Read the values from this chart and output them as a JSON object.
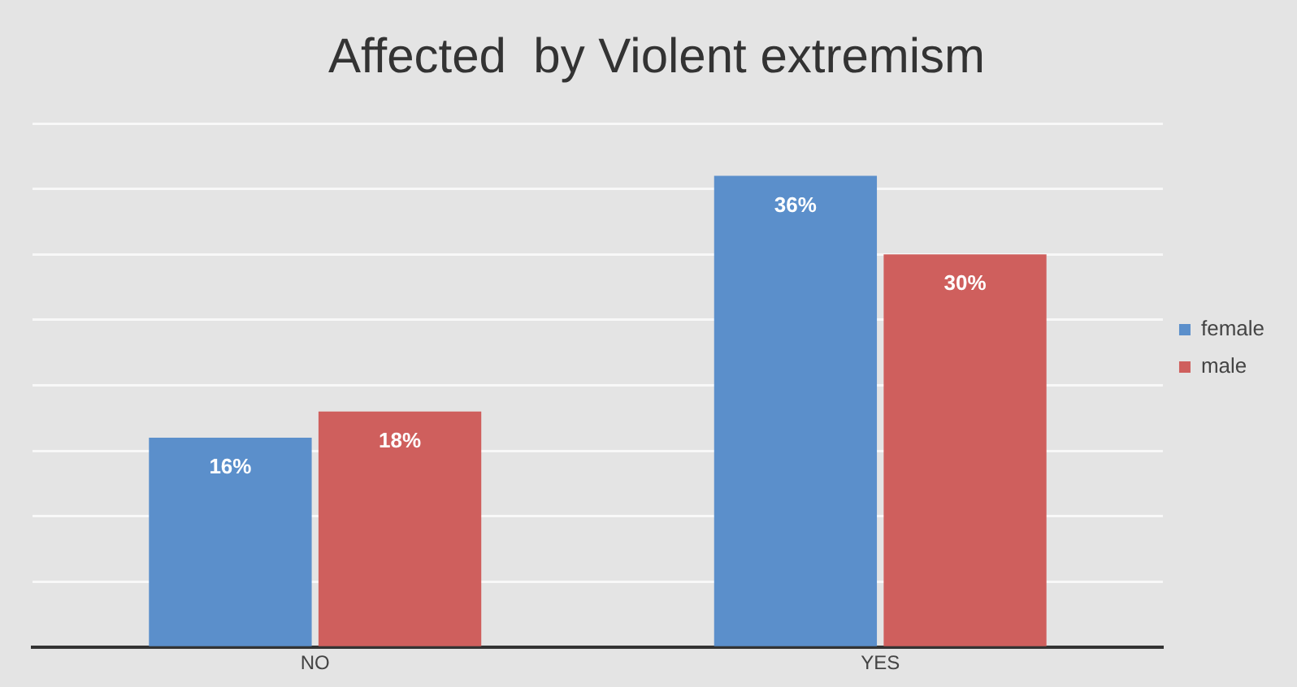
{
  "chart_data": {
    "type": "bar",
    "title": "Affected  by Violent extremism",
    "categories": [
      "NO",
      "YES"
    ],
    "series": [
      {
        "name": "female",
        "color": "#5b8fcb",
        "values": [
          16,
          36
        ],
        "value_labels": [
          "16%",
          "36%"
        ]
      },
      {
        "name": "male",
        "color": "#cf5f5d",
        "values": [
          18,
          30
        ],
        "value_labels": [
          "18%",
          "30%"
        ]
      }
    ],
    "ylim": [
      0,
      40
    ],
    "yticks": [
      {
        "value": 0,
        "label": null
      },
      {
        "value": 5,
        "label": null
      },
      {
        "value": 10,
        "label": null
      },
      {
        "value": 15,
        "label": null
      },
      {
        "value": 20,
        "label": null
      },
      {
        "value": 25,
        "label": null
      },
      {
        "value": 30,
        "label": null
      },
      {
        "value": 35,
        "label": null
      },
      {
        "value": 40,
        "label": null
      }
    ],
    "grid": "y",
    "legend": "right",
    "tick_labels": "x"
  }
}
